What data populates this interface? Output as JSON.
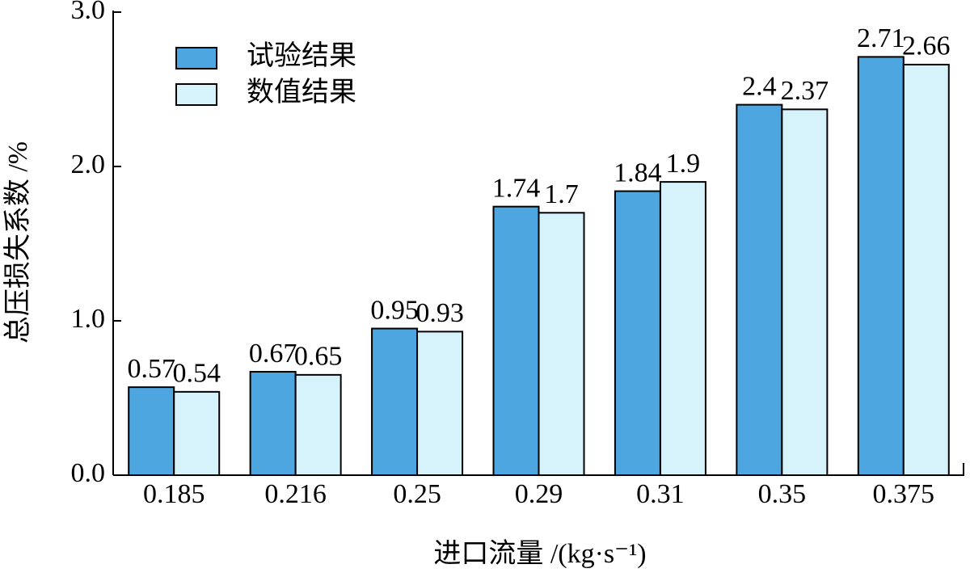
{
  "chart_data": {
    "type": "bar",
    "x_label": "进口流量 /(kg·s⁻¹)",
    "y_label": "总压损失系数 /%",
    "categories": [
      "0.185",
      "0.216",
      "0.25",
      "0.29",
      "0.31",
      "0.35",
      "0.375"
    ],
    "series": [
      {
        "name": "试验结果",
        "color": "#4da6e0",
        "values": [
          0.57,
          0.67,
          0.95,
          1.74,
          1.84,
          2.4,
          2.71
        ]
      },
      {
        "name": "数值结果",
        "color": "#d6f3fc",
        "values": [
          0.54,
          0.65,
          0.93,
          1.7,
          1.9,
          2.37,
          2.66
        ]
      }
    ],
    "ylim": [
      0,
      3
    ],
    "yticks": [
      {
        "value": 0,
        "label": "0.0"
      },
      {
        "value": 1,
        "label": "1.0"
      },
      {
        "value": 2,
        "label": "2.0"
      },
      {
        "value": 3,
        "label": "3.0"
      }
    ],
    "legend": "upper left"
  }
}
